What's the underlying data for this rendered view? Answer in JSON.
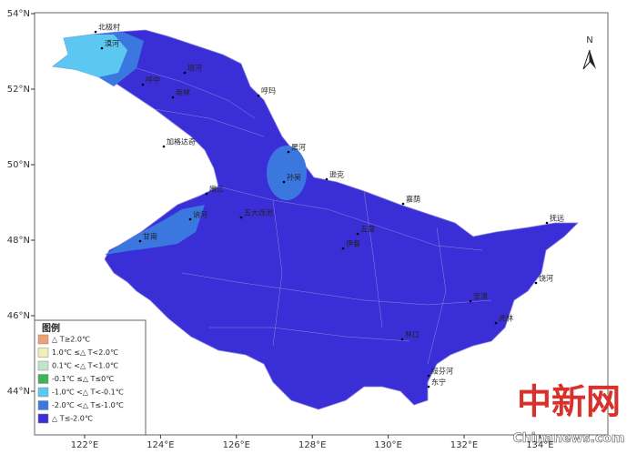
{
  "map": {
    "lat_ticks": [
      {
        "value": 54,
        "label": "54°N"
      },
      {
        "value": 52,
        "label": "52°N"
      },
      {
        "value": 50,
        "label": "50°N"
      },
      {
        "value": 48,
        "label": "48°N"
      },
      {
        "value": 46,
        "label": "46°N"
      },
      {
        "value": 44,
        "label": "44°N"
      }
    ],
    "lon_ticks": [
      {
        "value": 122,
        "label": "122°E"
      },
      {
        "value": 124,
        "label": "124°E"
      },
      {
        "value": 126,
        "label": "126°E"
      },
      {
        "value": 128,
        "label": "128°E"
      },
      {
        "value": 130,
        "label": "130°E"
      },
      {
        "value": 132,
        "label": "132°E"
      },
      {
        "value": 134,
        "label": "134°E"
      }
    ],
    "north": "N",
    "cities": [
      "北极村",
      "漠河",
      "塔河",
      "呼中",
      "新林",
      "呼玛",
      "加格达奇",
      "黑河",
      "孙吴",
      "逊克",
      "嘉荫",
      "抚远",
      "嫩江",
      "讷河",
      "五大连池",
      "甘南",
      "伊春",
      "五营",
      "宝清",
      "饶河",
      "虎林",
      "绥芬河",
      "东宁",
      "林口"
    ],
    "legend": {
      "title": "图例",
      "items": [
        {
          "label": "△ T≥2.0℃",
          "color": "#f0a070"
        },
        {
          "label": "1.0℃ ≤△ T<2.0℃",
          "color": "#f2efb4"
        },
        {
          "label": "0.1℃ <△ T<1.0℃",
          "color": "#bfe6c9"
        },
        {
          "label": "-0.1℃ ≤△ T≤0℃",
          "color": "#3cb45a"
        },
        {
          "label": "-1.0℃ <△ T<-0.1℃",
          "color": "#5cc8f2"
        },
        {
          "label": "-2.0℃ <△ T≤-1.0℃",
          "color": "#3a78e0"
        },
        {
          "label": "△ T≤-2.0℃",
          "color": "#3a2fd6"
        }
      ]
    },
    "watermark": {
      "logo": "中新网",
      "site": "Chinanews.com"
    }
  }
}
